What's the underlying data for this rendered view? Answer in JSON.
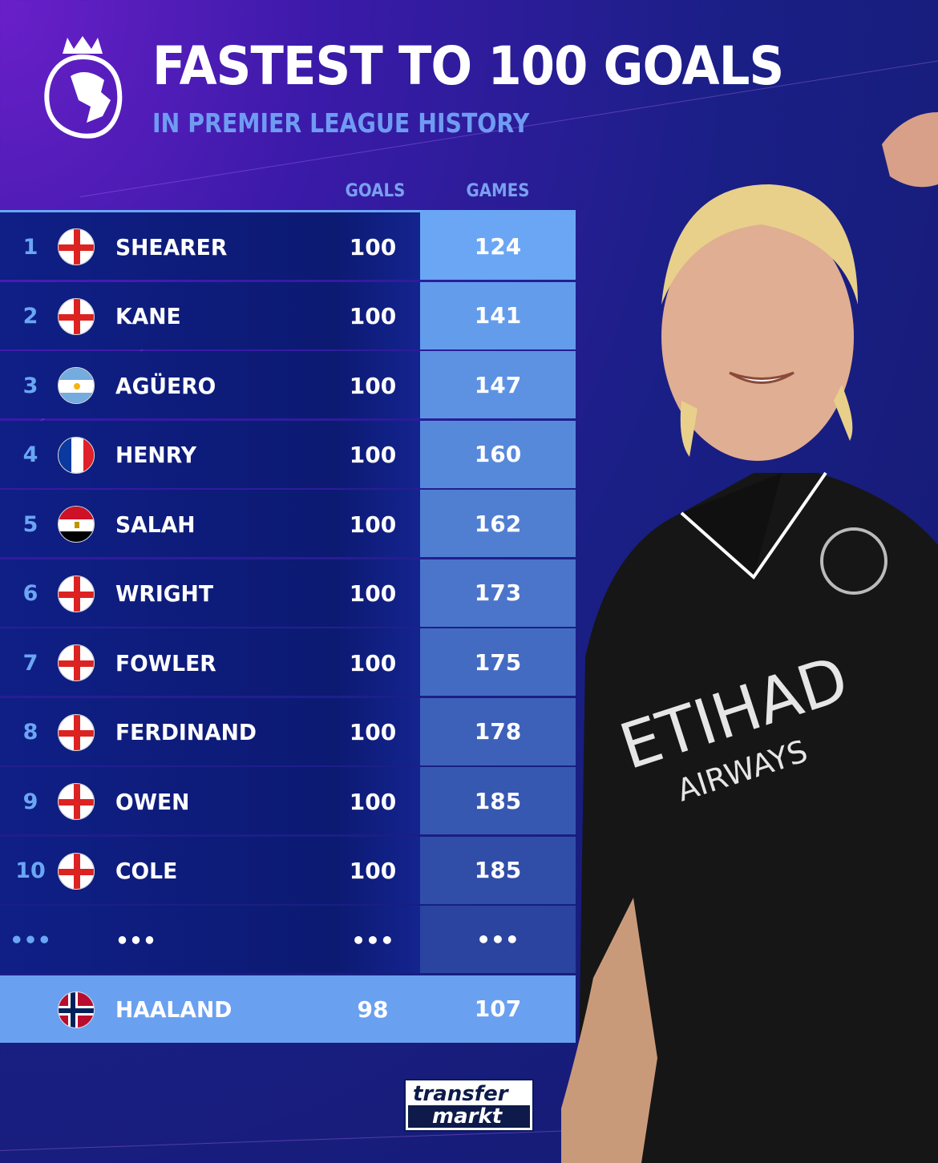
{
  "header": {
    "title": "FASTEST TO 100 GOALS",
    "subtitle": "IN PREMIER LEAGUE HISTORY",
    "logo": "premier-league-lion-icon"
  },
  "columns": {
    "goals": "GOALS",
    "games": "GAMES"
  },
  "rows": [
    {
      "rank": "1",
      "flag": "england",
      "name": "SHEARER",
      "goals": "100",
      "games": "124"
    },
    {
      "rank": "2",
      "flag": "england",
      "name": "KANE",
      "goals": "100",
      "games": "141"
    },
    {
      "rank": "3",
      "flag": "argentina",
      "name": "AGÜERO",
      "goals": "100",
      "games": "147"
    },
    {
      "rank": "4",
      "flag": "france",
      "name": "HENRY",
      "goals": "100",
      "games": "160"
    },
    {
      "rank": "5",
      "flag": "egypt",
      "name": "SALAH",
      "goals": "100",
      "games": "162"
    },
    {
      "rank": "6",
      "flag": "england",
      "name": "WRIGHT",
      "goals": "100",
      "games": "173"
    },
    {
      "rank": "7",
      "flag": "england",
      "name": "FOWLER",
      "goals": "100",
      "games": "175"
    },
    {
      "rank": "8",
      "flag": "england",
      "name": "FERDINAND",
      "goals": "100",
      "games": "178"
    },
    {
      "rank": "9",
      "flag": "england",
      "name": "OWEN",
      "goals": "100",
      "games": "185"
    },
    {
      "rank": "10",
      "flag": "england",
      "name": "COLE",
      "goals": "100",
      "games": "185"
    }
  ],
  "ellipsis_row": {
    "rank": "•••",
    "name": "•••",
    "goals": "•••",
    "games": "•••"
  },
  "highlight": {
    "flag": "norway",
    "name": "HAALAND",
    "goals": "98",
    "games": "107"
  },
  "footer": {
    "logo_line1": "transfer",
    "logo_line2": "markt"
  },
  "photo": {
    "shirt_text1": "ETIHAD",
    "shirt_text2": "AIRWAYS"
  },
  "colors": {
    "accent": "#6aa6f4",
    "row_bg": "#0f1f86",
    "title": "#ffffff",
    "subtitle": "#6f9cf2"
  }
}
